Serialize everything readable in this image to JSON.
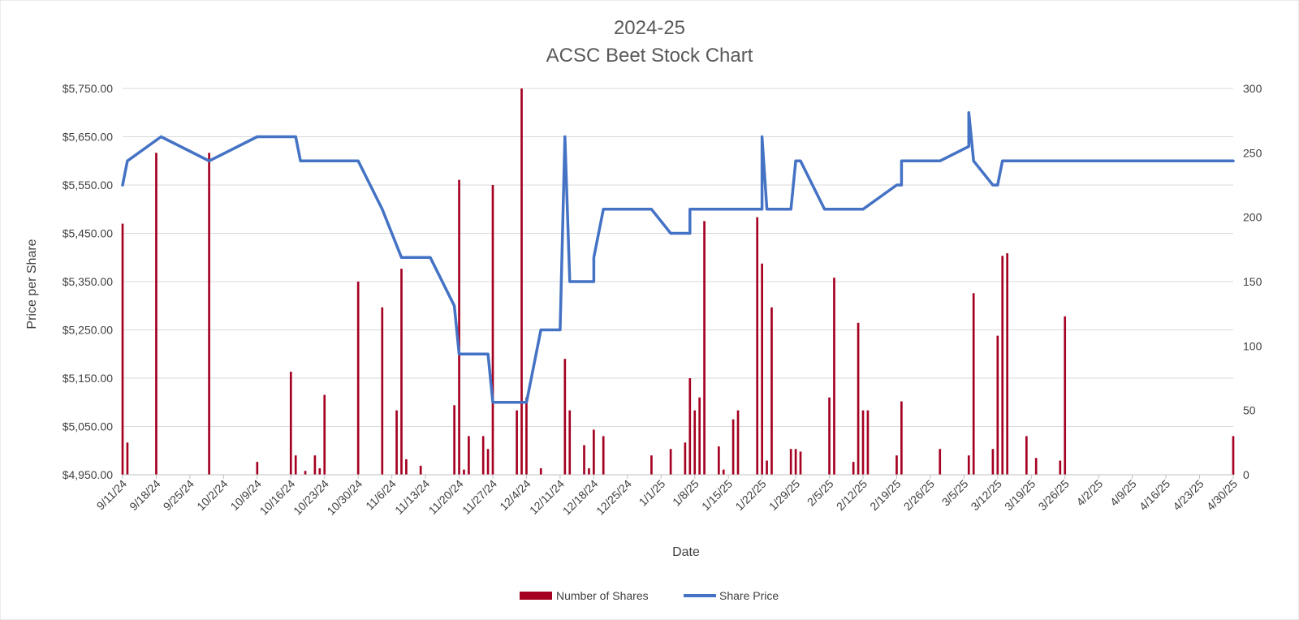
{
  "chart_data": {
    "type": "bar+line",
    "title": [
      "2024-25",
      "ACSC Beet Stock Chart"
    ],
    "xlabel": "Date",
    "ylabel": "Price per Share",
    "y2label": "",
    "ylim": [
      4950,
      5750
    ],
    "y2lim": [
      0,
      300
    ],
    "grid": true,
    "legend_position": "bottom",
    "x_start": "9/11/24",
    "x_end": "4/30/25",
    "x_ticks": [
      "9/11/24",
      "9/18/24",
      "9/25/24",
      "10/2/24",
      "10/9/24",
      "10/16/24",
      "10/23/24",
      "10/30/24",
      "11/6/24",
      "11/13/24",
      "11/20/24",
      "11/27/24",
      "12/4/24",
      "12/11/24",
      "12/18/24",
      "12/25/24",
      "1/1/25",
      "1/8/25",
      "1/15/25",
      "1/22/25",
      "1/29/25",
      "2/5/25",
      "2/12/25",
      "2/19/25",
      "2/26/25",
      "3/5/25",
      "3/12/25",
      "3/19/25",
      "3/26/25",
      "4/2/25",
      "4/9/25",
      "4/16/25",
      "4/23/25",
      "4/30/25"
    ],
    "y_ticks": [
      "$4,950.00",
      "$5,050.00",
      "$5,150.00",
      "$5,250.00",
      "$5,350.00",
      "$5,450.00",
      "$5,550.00",
      "$5,650.00",
      "$5,750.00"
    ],
    "y2_ticks": [
      "0",
      "50",
      "100",
      "150",
      "200",
      "250",
      "300"
    ],
    "series": [
      {
        "name": "Number of Shares",
        "type": "bar",
        "color": "#a50021",
        "axis": "secondary",
        "points": [
          [
            "9/11/24",
            195
          ],
          [
            "9/12/24",
            25
          ],
          [
            "9/18/24",
            250
          ],
          [
            "9/29/24",
            250
          ],
          [
            "10/9/24",
            10
          ],
          [
            "10/16/24",
            80
          ],
          [
            "10/17/24",
            15
          ],
          [
            "10/19/24",
            3
          ],
          [
            "10/21/24",
            15
          ],
          [
            "10/22/24",
            5
          ],
          [
            "10/23/24",
            62
          ],
          [
            "10/30/24",
            150
          ],
          [
            "11/4/24",
            130
          ],
          [
            "11/7/24",
            50
          ],
          [
            "11/8/24",
            160
          ],
          [
            "11/9/24",
            12
          ],
          [
            "11/12/24",
            7
          ],
          [
            "11/19/24",
            54
          ],
          [
            "11/20/24",
            229
          ],
          [
            "11/21/24",
            4
          ],
          [
            "11/22/24",
            30
          ],
          [
            "11/25/24",
            30
          ],
          [
            "11/26/24",
            20
          ],
          [
            "11/27/24",
            225
          ],
          [
            "12/2/24",
            50
          ],
          [
            "12/3/24",
            300
          ],
          [
            "12/4/24",
            60
          ],
          [
            "12/7/24",
            5
          ],
          [
            "12/12/24",
            90
          ],
          [
            "12/13/24",
            50
          ],
          [
            "12/16/24",
            23
          ],
          [
            "12/17/24",
            5
          ],
          [
            "12/18/24",
            35
          ],
          [
            "12/20/24",
            30
          ],
          [
            "12/30/24",
            15
          ],
          [
            "1/3/25",
            20
          ],
          [
            "1/6/25",
            25
          ],
          [
            "1/7/25",
            75
          ],
          [
            "1/8/25",
            50
          ],
          [
            "1/9/25",
            60
          ],
          [
            "1/10/25",
            197
          ],
          [
            "1/13/25",
            22
          ],
          [
            "1/14/25",
            4
          ],
          [
            "1/16/25",
            43
          ],
          [
            "1/17/25",
            50
          ],
          [
            "1/21/25",
            200
          ],
          [
            "1/22/25",
            164
          ],
          [
            "1/23/25",
            11
          ],
          [
            "1/24/25",
            130
          ],
          [
            "1/28/25",
            20
          ],
          [
            "1/29/25",
            20
          ],
          [
            "1/30/25",
            18
          ],
          [
            "2/5/25",
            60
          ],
          [
            "2/6/25",
            153
          ],
          [
            "2/10/25",
            10
          ],
          [
            "2/11/25",
            118
          ],
          [
            "2/12/25",
            50
          ],
          [
            "2/13/25",
            50
          ],
          [
            "2/19/25",
            15
          ],
          [
            "2/20/25",
            57
          ],
          [
            "2/28/25",
            20
          ],
          [
            "3/6/25",
            15
          ],
          [
            "3/7/25",
            141
          ],
          [
            "3/11/25",
            20
          ],
          [
            "3/12/25",
            108
          ],
          [
            "3/13/25",
            170
          ],
          [
            "3/14/25",
            172
          ],
          [
            "3/18/25",
            30
          ],
          [
            "3/20/25",
            13
          ],
          [
            "3/25/25",
            11
          ],
          [
            "3/26/25",
            123
          ],
          [
            "4/30/25",
            30
          ]
        ]
      },
      {
        "name": "Share Price",
        "type": "line",
        "color": "#4472c4",
        "axis": "primary",
        "points": [
          [
            "9/11/24",
            5550
          ],
          [
            "9/12/24",
            5600
          ],
          [
            "9/19/24",
            5650
          ],
          [
            "9/29/24",
            5600
          ],
          [
            "10/9/24",
            5650
          ],
          [
            "10/17/24",
            5650
          ],
          [
            "10/18/24",
            5600
          ],
          [
            "10/30/24",
            5600
          ],
          [
            "11/4/24",
            5500
          ],
          [
            "11/8/24",
            5400
          ],
          [
            "11/14/24",
            5400
          ],
          [
            "11/19/24",
            5300
          ],
          [
            "11/20/24",
            5200
          ],
          [
            "11/26/24",
            5200
          ],
          [
            "11/27/24",
            5100
          ],
          [
            "12/4/24",
            5100
          ],
          [
            "12/7/24",
            5250
          ],
          [
            "12/11/24",
            5250
          ],
          [
            "12/12/24",
            5650
          ],
          [
            "12/13/24",
            5350
          ],
          [
            "12/18/24",
            5350
          ],
          [
            "12/18/24",
            5400
          ],
          [
            "12/20/24",
            5500
          ],
          [
            "12/30/24",
            5500
          ],
          [
            "1/3/25",
            5450
          ],
          [
            "1/7/25",
            5450
          ],
          [
            "1/7/25",
            5500
          ],
          [
            "1/21/25",
            5500
          ],
          [
            "1/22/25",
            5500
          ],
          [
            "1/22/25",
            5650
          ],
          [
            "1/23/25",
            5500
          ],
          [
            "1/28/25",
            5500
          ],
          [
            "1/29/25",
            5600
          ],
          [
            "1/30/25",
            5600
          ],
          [
            "2/4/25",
            5500
          ],
          [
            "2/12/25",
            5500
          ],
          [
            "2/19/25",
            5550
          ],
          [
            "2/20/25",
            5550
          ],
          [
            "2/20/25",
            5600
          ],
          [
            "2/28/25",
            5600
          ],
          [
            "3/6/25",
            5630
          ],
          [
            "3/6/25",
            5700
          ],
          [
            "3/7/25",
            5600
          ],
          [
            "3/11/25",
            5550
          ],
          [
            "3/12/25",
            5550
          ],
          [
            "3/13/25",
            5600
          ],
          [
            "4/30/25",
            5600
          ]
        ]
      }
    ]
  }
}
